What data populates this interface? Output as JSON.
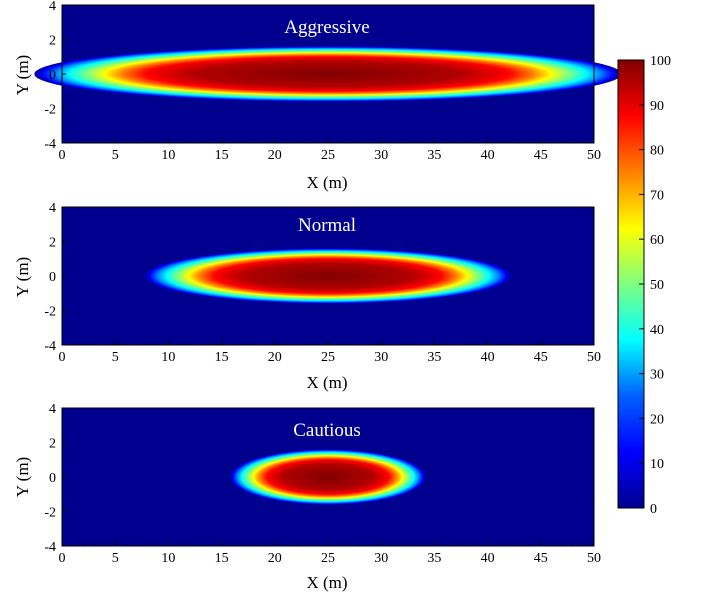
{
  "chart_data": [
    {
      "type": "heatmap",
      "title": "Aggressive",
      "xlabel": "X (m)",
      "ylabel": "Y (m)",
      "xlim": [
        0,
        50
      ],
      "ylim": [
        -4,
        4
      ],
      "x_ticks": [
        "0",
        "5",
        "10",
        "15",
        "20",
        "25",
        "30",
        "35",
        "40",
        "45",
        "50"
      ],
      "y_ticks": [
        "4",
        "2",
        "0",
        "-2",
        "-4"
      ],
      "peak": {
        "x": 25,
        "y": 0,
        "value": 100
      },
      "spread": {
        "x_halfwidth_at_level_10": 24,
        "y_halfwidth_at_level_10": 1.4
      }
    },
    {
      "type": "heatmap",
      "title": "Normal",
      "xlabel": "X (m)",
      "ylabel": "Y (m)",
      "xlim": [
        0,
        50
      ],
      "ylim": [
        -4,
        4
      ],
      "x_ticks": [
        "0",
        "5",
        "10",
        "15",
        "20",
        "25",
        "30",
        "35",
        "40",
        "45",
        "50"
      ],
      "y_ticks": [
        "4",
        "2",
        "0",
        "-2",
        "-4"
      ],
      "peak": {
        "x": 25,
        "y": 0,
        "value": 100
      },
      "spread": {
        "x_halfwidth_at_level_10": 15,
        "y_halfwidth_at_level_10": 1.4
      }
    },
    {
      "type": "heatmap",
      "title": "Cautious",
      "xlabel": "X (m)",
      "ylabel": "Y (m)",
      "xlim": [
        0,
        50
      ],
      "ylim": [
        -4,
        4
      ],
      "x_ticks": [
        "0",
        "5",
        "10",
        "15",
        "20",
        "25",
        "30",
        "35",
        "40",
        "45",
        "50"
      ],
      "y_ticks": [
        "4",
        "2",
        "0",
        "-2",
        "-4"
      ],
      "peak": {
        "x": 25,
        "y": 0,
        "value": 100
      },
      "spread": {
        "x_halfwidth_at_level_10": 8,
        "y_halfwidth_at_level_10": 1.4
      }
    }
  ],
  "colorbar": {
    "range": [
      0,
      100
    ],
    "colormap": "jet",
    "ticks": [
      "100",
      "90",
      "80",
      "70",
      "60",
      "50",
      "40",
      "30",
      "20",
      "10",
      "0"
    ]
  },
  "colors": {
    "background_min": "#00008f",
    "peak_max": "#800000",
    "title_text": "#ffffff"
  }
}
